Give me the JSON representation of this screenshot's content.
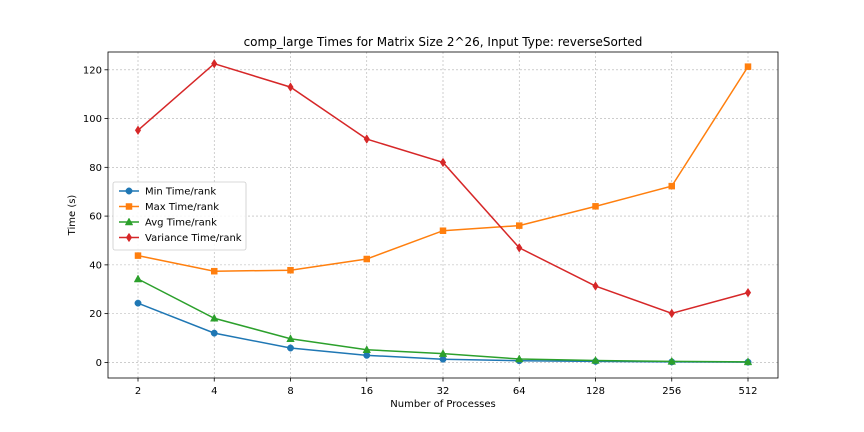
{
  "chart_data": {
    "type": "line",
    "title": "comp_large Times for Matrix Size 2^26, Input Type: reverseSorted",
    "xlabel": "Number of Processes",
    "ylabel": "Time (s)",
    "x_scale": "log2",
    "categories": [
      "2",
      "4",
      "8",
      "16",
      "32",
      "64",
      "128",
      "256",
      "512"
    ],
    "x": [
      2,
      4,
      8,
      16,
      32,
      64,
      128,
      256,
      512
    ],
    "ylim": [
      -6.4,
      127.3
    ],
    "yticks": [
      0,
      20,
      40,
      60,
      80,
      100,
      120
    ],
    "grid": true,
    "legend_position": "center-left",
    "series": [
      {
        "name": "Min Time/rank",
        "color": "#1f77b4",
        "marker": "circle",
        "values": [
          24.3,
          12.0,
          5.9,
          2.9,
          1.3,
          0.7,
          0.4,
          0.2,
          0.1
        ]
      },
      {
        "name": "Max Time/rank",
        "color": "#ff7f0e",
        "marker": "square",
        "values": [
          43.8,
          37.4,
          37.8,
          42.4,
          54.0,
          56.1,
          64.0,
          72.3,
          121.3
        ]
      },
      {
        "name": "Avg Time/rank",
        "color": "#2ca02c",
        "marker": "triangle",
        "values": [
          34.2,
          18.1,
          9.7,
          5.2,
          3.6,
          1.4,
          0.8,
          0.4,
          0.2
        ]
      },
      {
        "name": "Variance Time/rank",
        "color": "#d62728",
        "marker": "diamond",
        "values": [
          95.2,
          122.5,
          112.9,
          91.6,
          82.0,
          47.0,
          31.3,
          20.1,
          28.6
        ]
      }
    ]
  }
}
